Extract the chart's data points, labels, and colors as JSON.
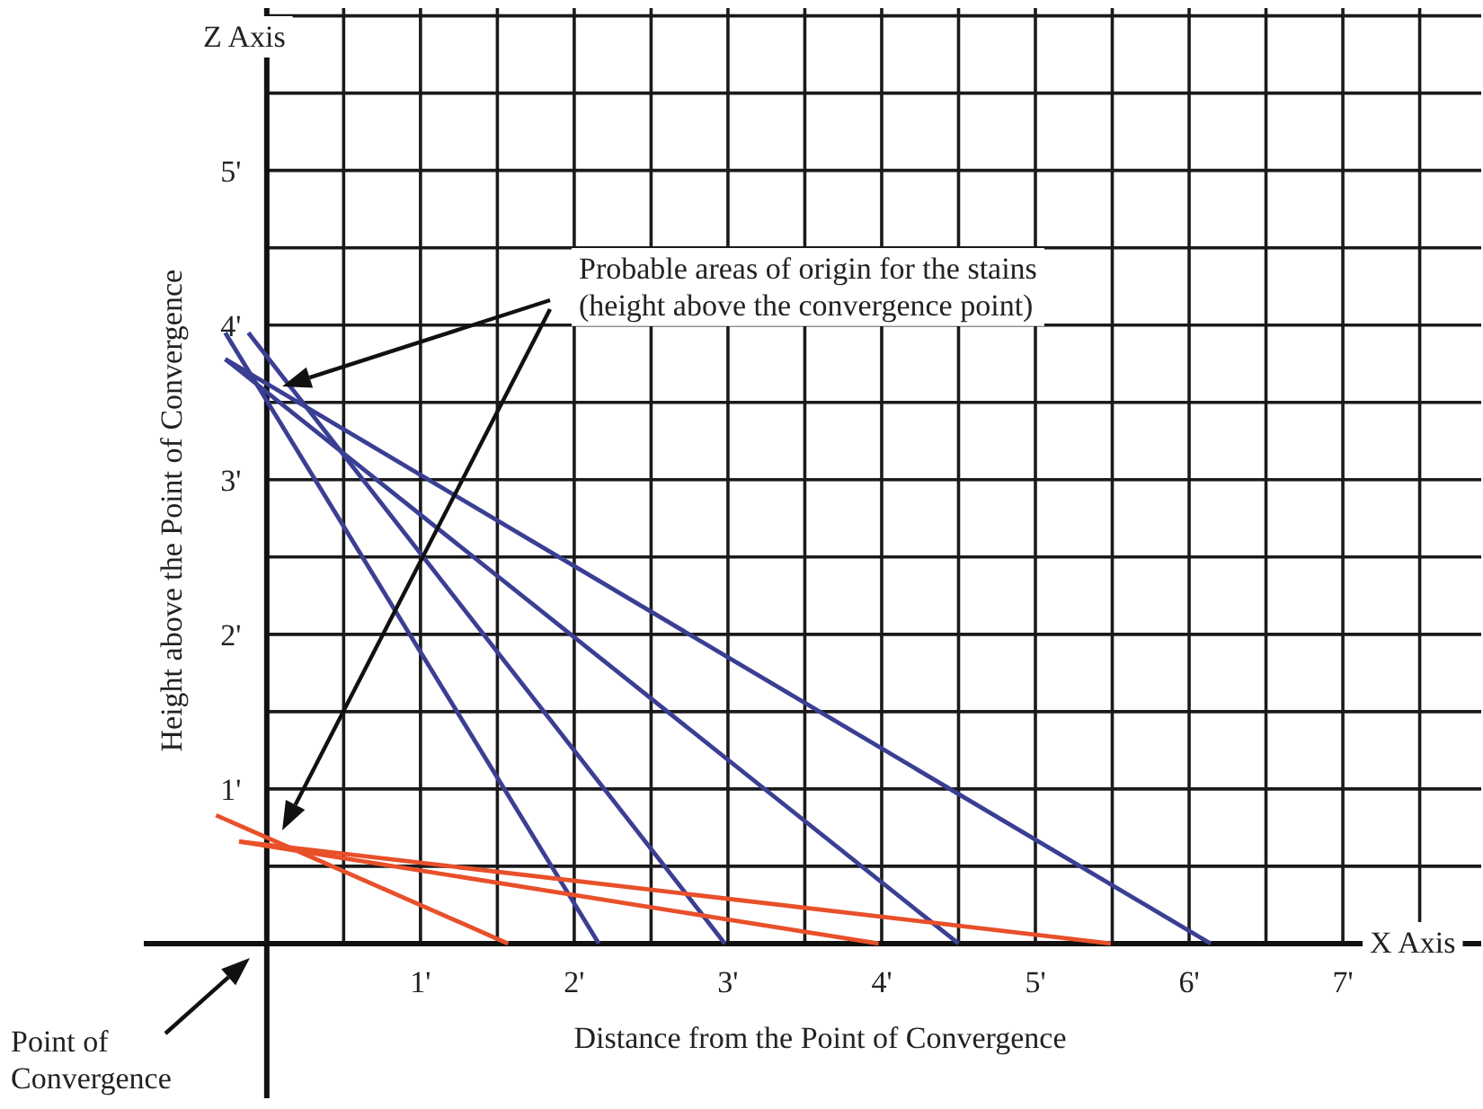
{
  "chart_data": {
    "type": "line",
    "xlabel": "Distance from the Point of Convergence",
    "ylabel": "Height above the Point of Convergence",
    "annotations": [
      "Z Axis",
      "X Axis",
      "Probable areas of origin for the stains\n(height above the convergence point)",
      "Point of\nConvergence"
    ],
    "series": [
      {
        "color": "#3b3f93",
        "x": [
          -0.27,
          2.16
        ],
        "values": [
          3.95,
          0
        ]
      },
      {
        "color": "#3b3f93",
        "x": [
          -0.12,
          2.98
        ],
        "values": [
          3.95,
          0
        ]
      },
      {
        "color": "#3b3f93",
        "x": [
          -0.27,
          4.5
        ],
        "values": [
          3.78,
          0
        ]
      },
      {
        "color": "#3b3f93",
        "x": [
          -0.27,
          6.14
        ],
        "values": [
          3.78,
          0
        ]
      },
      {
        "color": "#e8502a",
        "x": [
          -0.33,
          1.57
        ],
        "values": [
          0.83,
          0
        ]
      },
      {
        "color": "#e8502a",
        "x": [
          -0.18,
          3.98
        ],
        "values": [
          0.66,
          0
        ]
      },
      {
        "color": "#e8502a",
        "x": [
          -0.18,
          5.49
        ],
        "values": [
          0.66,
          0
        ]
      }
    ],
    "xlim": [
      -0.8,
      7.9
    ],
    "ylim": [
      -1.0,
      6.05
    ],
    "xticks": [
      {
        "value": 0.5,
        "label": null
      },
      {
        "value": 1,
        "label": "1'"
      },
      {
        "value": 1.5,
        "label": null
      },
      {
        "value": 2,
        "label": "2'"
      },
      {
        "value": 2.5,
        "label": null
      },
      {
        "value": 3,
        "label": "3'"
      },
      {
        "value": 3.5,
        "label": null
      },
      {
        "value": 4,
        "label": "4'"
      },
      {
        "value": 4.5,
        "label": null
      },
      {
        "value": 5,
        "label": "5'"
      },
      {
        "value": 5.5,
        "label": null
      },
      {
        "value": 6,
        "label": "6'"
      },
      {
        "value": 6.5,
        "label": null
      },
      {
        "value": 7,
        "label": "7'"
      },
      {
        "value": 7.5,
        "label": null
      }
    ],
    "yticks": [
      {
        "value": 0.5,
        "label": null
      },
      {
        "value": 1,
        "label": "1'"
      },
      {
        "value": 1.5,
        "label": null
      },
      {
        "value": 2,
        "label": "2'"
      },
      {
        "value": 2.5,
        "label": null
      },
      {
        "value": 3,
        "label": "3'"
      },
      {
        "value": 3.5,
        "label": null
      },
      {
        "value": 4,
        "label": "4'"
      },
      {
        "value": 4.5,
        "label": null
      },
      {
        "value": 5,
        "label": "5'"
      },
      {
        "value": 5.5,
        "label": null
      },
      {
        "value": 6,
        "label": null
      }
    ],
    "grid": true,
    "marker": "none",
    "line_style": "solid"
  }
}
